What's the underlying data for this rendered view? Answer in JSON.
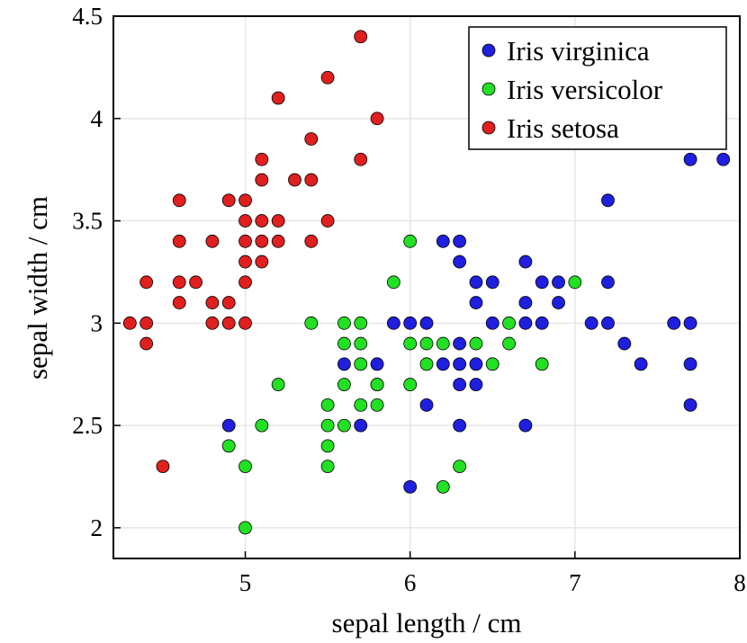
{
  "chart_data": {
    "type": "scatter",
    "title": "",
    "xlabel": "sepal length / cm",
    "ylabel": "sepal width / cm",
    "xlim": [
      4.2,
      8.0
    ],
    "ylim": [
      1.85,
      4.5
    ],
    "x_ticks": [
      5,
      6,
      7,
      8
    ],
    "y_ticks": [
      2,
      2.5,
      3,
      3.5,
      4,
      4.5
    ],
    "x_tick_labels": [
      "5",
      "6",
      "7",
      "8"
    ],
    "y_tick_labels": [
      "2",
      "2.5",
      "3",
      "3.5",
      "4",
      "4.5"
    ],
    "grid": true,
    "legend_position": "top-right",
    "series": [
      {
        "name": "Iris virginica",
        "color": "#1f1fe0",
        "points": [
          [
            4.9,
            2.5
          ],
          [
            5.6,
            2.8
          ],
          [
            5.7,
            2.5
          ],
          [
            5.8,
            2.8
          ],
          [
            5.8,
            2.7
          ],
          [
            5.9,
            3.0
          ],
          [
            6.0,
            3.0
          ],
          [
            6.0,
            2.2
          ],
          [
            6.1,
            3.0
          ],
          [
            6.1,
            2.6
          ],
          [
            6.2,
            3.4
          ],
          [
            6.2,
            2.8
          ],
          [
            6.3,
            3.4
          ],
          [
            6.3,
            3.3
          ],
          [
            6.3,
            2.9
          ],
          [
            6.3,
            2.8
          ],
          [
            6.3,
            2.7
          ],
          [
            6.3,
            2.5
          ],
          [
            6.4,
            3.2
          ],
          [
            6.4,
            3.1
          ],
          [
            6.4,
            2.8
          ],
          [
            6.4,
            2.7
          ],
          [
            6.5,
            3.2
          ],
          [
            6.5,
            3.0
          ],
          [
            6.7,
            3.3
          ],
          [
            6.7,
            3.1
          ],
          [
            6.7,
            3.0
          ],
          [
            6.7,
            2.5
          ],
          [
            6.8,
            3.2
          ],
          [
            6.8,
            3.0
          ],
          [
            6.9,
            3.2
          ],
          [
            6.9,
            3.1
          ],
          [
            7.1,
            3.0
          ],
          [
            7.2,
            3.6
          ],
          [
            7.2,
            3.2
          ],
          [
            7.2,
            3.0
          ],
          [
            7.3,
            2.9
          ],
          [
            7.4,
            2.8
          ],
          [
            7.6,
            3.0
          ],
          [
            7.7,
            3.8
          ],
          [
            7.7,
            3.0
          ],
          [
            7.7,
            2.8
          ],
          [
            7.7,
            2.6
          ],
          [
            7.9,
            3.8
          ]
        ]
      },
      {
        "name": "Iris versicolor",
        "color": "#22e022",
        "points": [
          [
            4.9,
            2.4
          ],
          [
            5.0,
            2.3
          ],
          [
            5.0,
            2.0
          ],
          [
            5.1,
            2.5
          ],
          [
            5.2,
            2.7
          ],
          [
            5.4,
            3.0
          ],
          [
            5.5,
            2.6
          ],
          [
            5.5,
            2.5
          ],
          [
            5.5,
            2.4
          ],
          [
            5.5,
            2.3
          ],
          [
            5.6,
            3.0
          ],
          [
            5.6,
            2.9
          ],
          [
            5.6,
            2.7
          ],
          [
            5.6,
            2.5
          ],
          [
            5.7,
            3.0
          ],
          [
            5.7,
            2.9
          ],
          [
            5.7,
            2.8
          ],
          [
            5.7,
            2.6
          ],
          [
            5.8,
            2.7
          ],
          [
            5.8,
            2.6
          ],
          [
            5.9,
            3.2
          ],
          [
            6.0,
            3.4
          ],
          [
            6.0,
            2.9
          ],
          [
            6.0,
            2.7
          ],
          [
            6.1,
            2.9
          ],
          [
            6.1,
            2.8
          ],
          [
            6.2,
            2.9
          ],
          [
            6.2,
            2.2
          ],
          [
            6.3,
            2.3
          ],
          [
            6.4,
            2.9
          ],
          [
            6.5,
            2.8
          ],
          [
            6.6,
            3.0
          ],
          [
            6.6,
            2.9
          ],
          [
            6.8,
            2.8
          ],
          [
            7.0,
            3.2
          ]
        ]
      },
      {
        "name": "Iris setosa",
        "color": "#e01f1f",
        "points": [
          [
            4.3,
            3.0
          ],
          [
            4.4,
            3.2
          ],
          [
            4.4,
            3.0
          ],
          [
            4.4,
            2.9
          ],
          [
            4.5,
            2.3
          ],
          [
            4.6,
            3.6
          ],
          [
            4.6,
            3.4
          ],
          [
            4.6,
            3.2
          ],
          [
            4.6,
            3.1
          ],
          [
            4.7,
            3.2
          ],
          [
            4.8,
            3.4
          ],
          [
            4.8,
            3.1
          ],
          [
            4.8,
            3.0
          ],
          [
            4.9,
            3.6
          ],
          [
            4.9,
            3.1
          ],
          [
            4.9,
            3.0
          ],
          [
            5.0,
            3.6
          ],
          [
            5.0,
            3.5
          ],
          [
            5.0,
            3.4
          ],
          [
            5.0,
            3.3
          ],
          [
            5.0,
            3.2
          ],
          [
            5.0,
            3.0
          ],
          [
            5.1,
            3.8
          ],
          [
            5.1,
            3.7
          ],
          [
            5.1,
            3.5
          ],
          [
            5.1,
            3.4
          ],
          [
            5.1,
            3.3
          ],
          [
            5.2,
            4.1
          ],
          [
            5.2,
            3.5
          ],
          [
            5.2,
            3.4
          ],
          [
            5.3,
            3.7
          ],
          [
            5.4,
            3.9
          ],
          [
            5.4,
            3.7
          ],
          [
            5.4,
            3.4
          ],
          [
            5.5,
            4.2
          ],
          [
            5.5,
            3.5
          ],
          [
            5.7,
            4.4
          ],
          [
            5.7,
            3.8
          ],
          [
            5.8,
            4.0
          ]
        ]
      }
    ]
  }
}
